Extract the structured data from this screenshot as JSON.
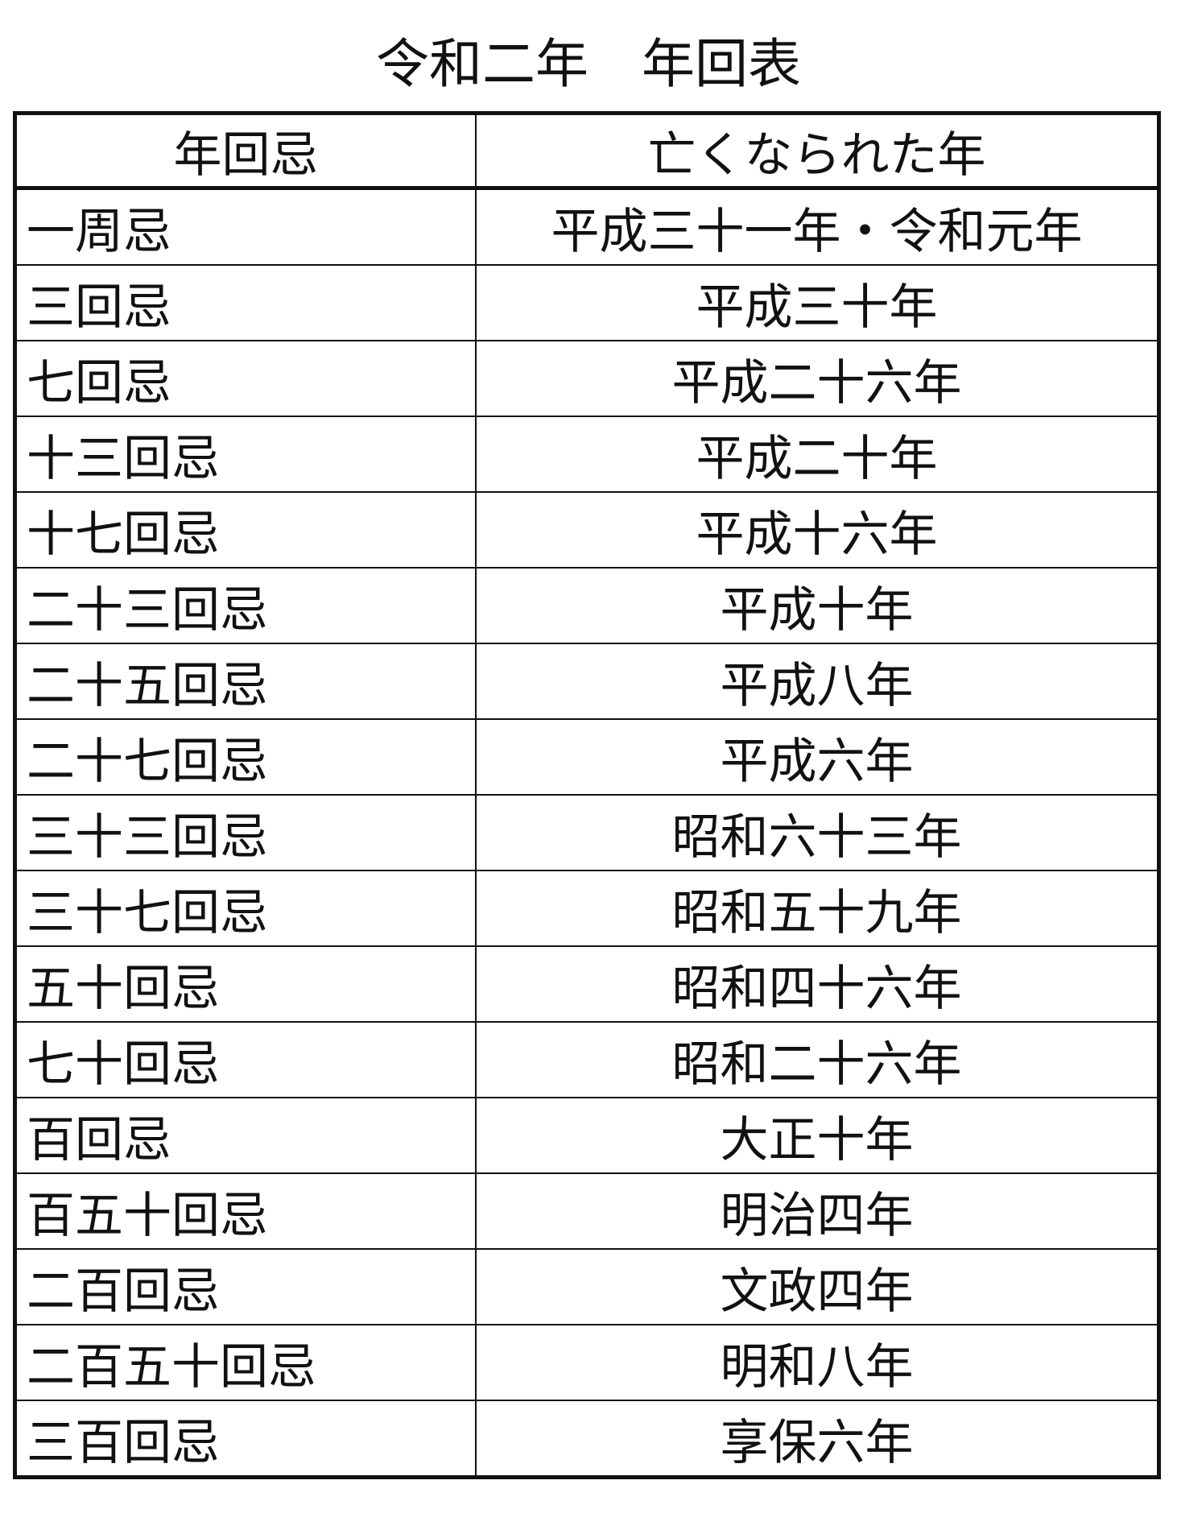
{
  "title": "令和二年　年回表",
  "table": {
    "header": [
      "年回忌",
      "亡くなられた年"
    ],
    "rows": [
      [
        "一周忌",
        "平成三十一年・令和元年"
      ],
      [
        "三回忌",
        "平成三十年"
      ],
      [
        "七回忌",
        "平成二十六年"
      ],
      [
        "十三回忌",
        "平成二十年"
      ],
      [
        "十七回忌",
        "平成十六年"
      ],
      [
        "二十三回忌",
        "平成十年"
      ],
      [
        "二十五回忌",
        "平成八年"
      ],
      [
        "二十七回忌",
        "平成六年"
      ],
      [
        "三十三回忌",
        "昭和六十三年"
      ],
      [
        "三十七回忌",
        "昭和五十九年"
      ],
      [
        "五十回忌",
        "昭和四十六年"
      ],
      [
        "七十回忌",
        "昭和二十六年"
      ],
      [
        "百回忌",
        "大正十年"
      ],
      [
        "百五十回忌",
        "明治四年"
      ],
      [
        "二百回忌",
        "文政四年"
      ],
      [
        "二百五十回忌",
        "明和八年"
      ],
      [
        "三百回忌",
        "享保六年"
      ]
    ]
  }
}
